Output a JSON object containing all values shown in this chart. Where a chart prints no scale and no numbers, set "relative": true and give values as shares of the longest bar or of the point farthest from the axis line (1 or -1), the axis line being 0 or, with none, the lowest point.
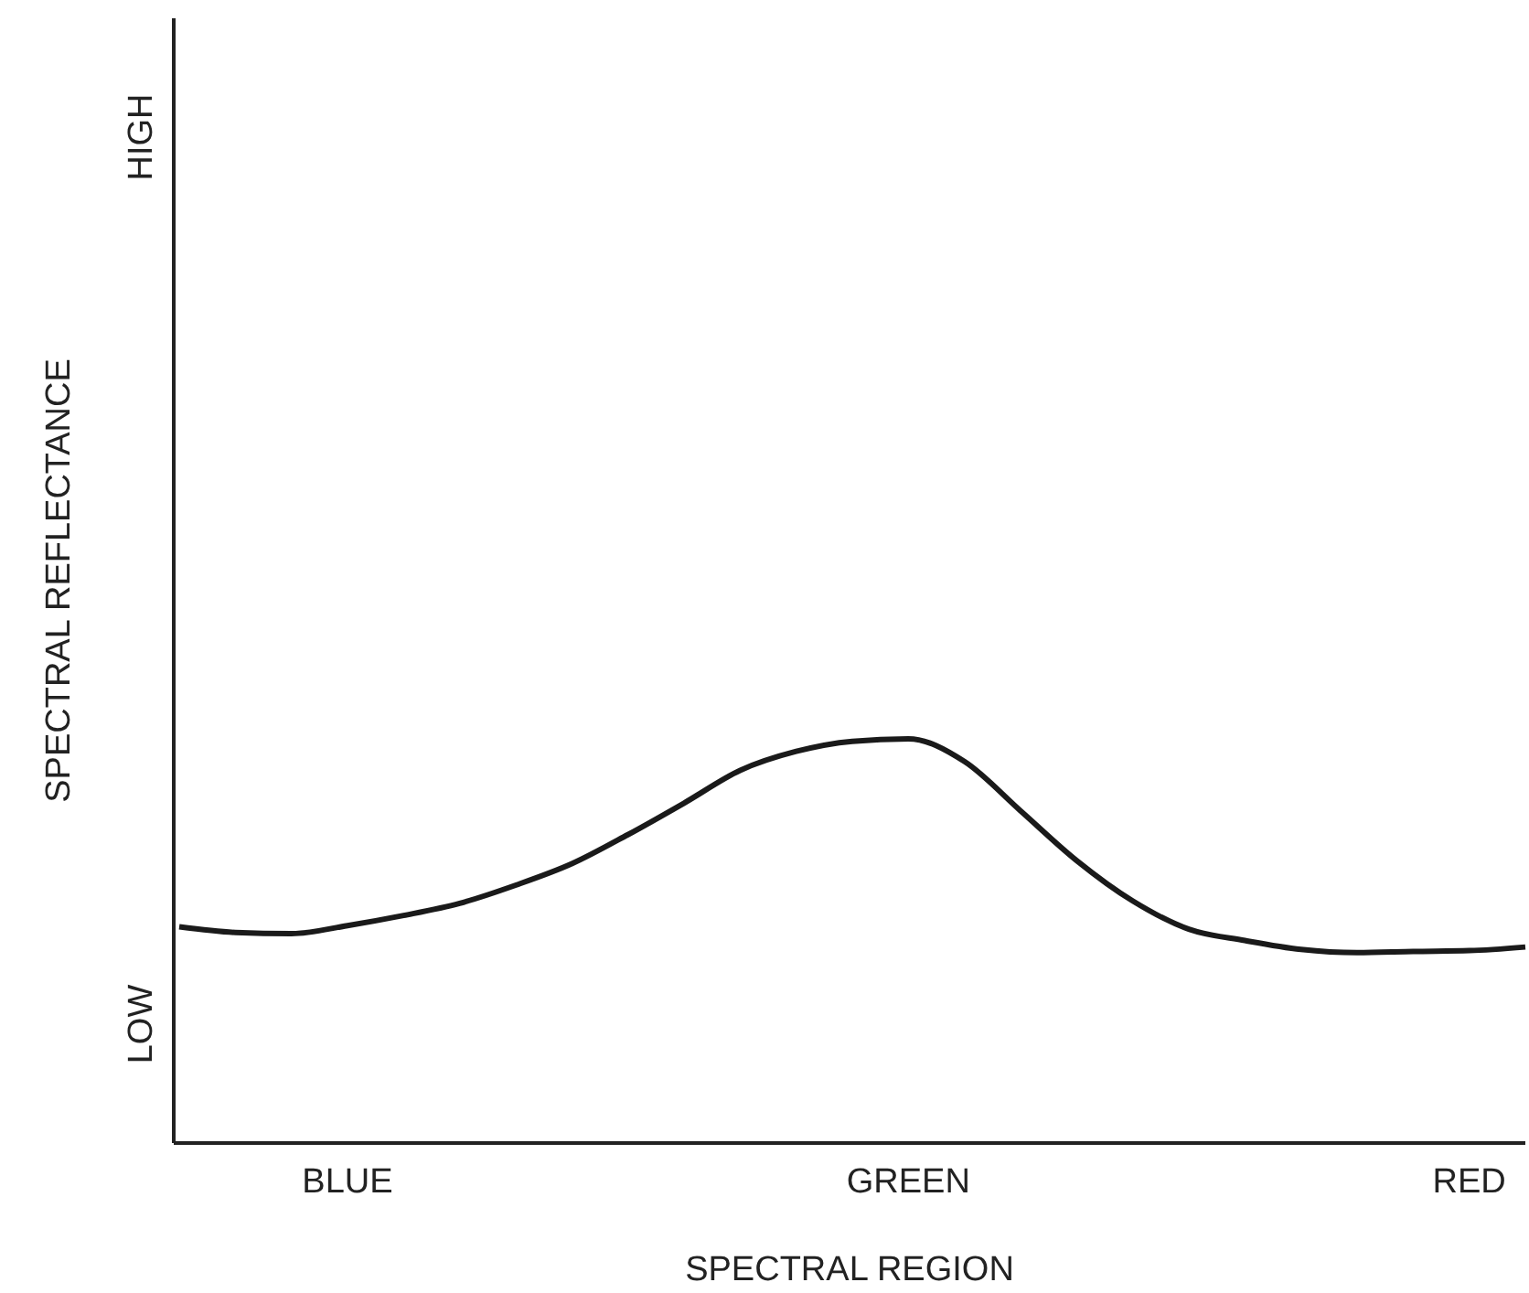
{
  "chart_data": {
    "type": "line",
    "xlabel": "SPECTRAL REGION",
    "ylabel": "SPECTRAL REFLECTANCE",
    "relative": true,
    "annotations": [
      "LOW",
      "HIGH"
    ],
    "categories": [
      null,
      null,
      null,
      "BLUE",
      null,
      null,
      null,
      null,
      null,
      null,
      null,
      null,
      null,
      "GREEN",
      null,
      null,
      null,
      null,
      null,
      null,
      null,
      null,
      null,
      "RED",
      null
    ],
    "grid": false,
    "marker": "none",
    "line_style": "solid",
    "series": [
      {
        "color": "#1a1a1a",
        "values": [
          0.535,
          0.521,
          0.518,
          0.538,
          0.563,
          0.593,
          0.638,
          0.691,
          0.763,
          0.841,
          0.922,
          0.969,
          0.994,
          1,
          0.944,
          0.822,
          0.699,
          0.599,
          0.529,
          0.501,
          0.479,
          0.471,
          0.474,
          0.476,
          0.485
        ]
      }
    ]
  }
}
